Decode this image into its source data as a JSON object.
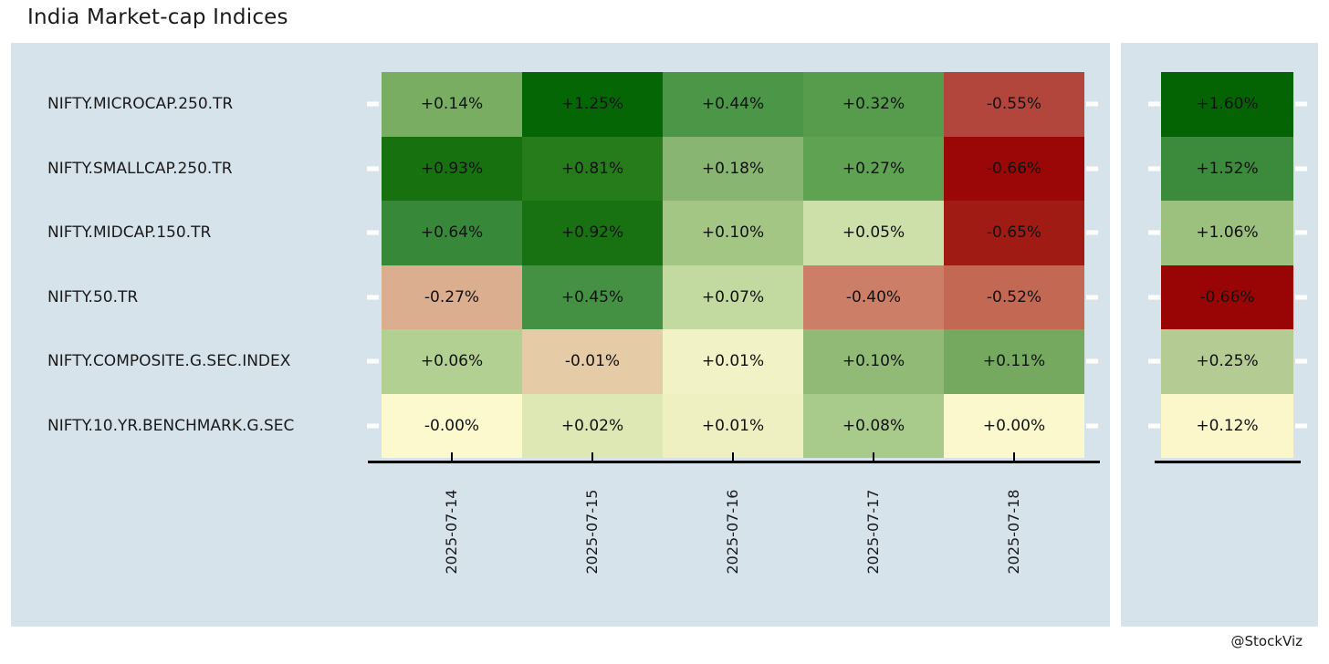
{
  "title": "India Market-cap Indices",
  "credit": "@StockViz",
  "chart_data": {
    "type": "heatmap",
    "title": "India Market-cap Indices",
    "unit": "percent daily return",
    "panel_bg": "#d7e3eb",
    "tick_color": "#ffffff",
    "axis_color": "#000000",
    "columns": [
      "2025-07-14",
      "2025-07-15",
      "2025-07-16",
      "2025-07-17",
      "2025-07-18"
    ],
    "summary_note": "right-hand column is the week total",
    "rows": [
      {
        "label": "NIFTY.MICROCAP.250.TR",
        "values": [
          0.14,
          1.25,
          0.44,
          0.32,
          -0.55
        ],
        "display": [
          "+0.14%",
          "+1.25%",
          "+0.44%",
          "+0.32%",
          "-0.55%"
        ],
        "colors": [
          "#79ae62",
          "#056605",
          "#4b9647",
          "#569c4c",
          "#b3463c"
        ],
        "summary_value": 1.6,
        "summary_display": "+1.60%",
        "summary_color": "#046404"
      },
      {
        "label": "NIFTY.SMALLCAP.250.TR",
        "values": [
          0.93,
          0.81,
          0.18,
          0.27,
          -0.66
        ],
        "display": [
          "+0.93%",
          "+0.81%",
          "+0.18%",
          "+0.27%",
          "-0.66%"
        ],
        "colors": [
          "#17710f",
          "#267b1b",
          "#89b572",
          "#5fa252",
          "#9b0707"
        ],
        "summary_value": 1.52,
        "summary_display": "+1.52%",
        "summary_color": "#3c8a3c"
      },
      {
        "label": "NIFTY.MIDCAP.150.TR",
        "values": [
          0.64,
          0.92,
          0.1,
          0.05,
          -0.65
        ],
        "display": [
          "+0.64%",
          "+0.92%",
          "+0.10%",
          "+0.05%",
          "-0.65%"
        ],
        "colors": [
          "#388839",
          "#187211",
          "#a3c685",
          "#cde0a9",
          "#a01b14"
        ],
        "summary_value": 1.06,
        "summary_display": "+1.06%",
        "summary_color": "#9cc17f"
      },
      {
        "label": "NIFTY.50.TR",
        "values": [
          -0.27,
          0.45,
          0.07,
          -0.4,
          -0.52
        ],
        "display": [
          "-0.27%",
          "+0.45%",
          "+0.07%",
          "-0.40%",
          "-0.52%"
        ],
        "colors": [
          "#dcae90",
          "#459144",
          "#c2d9a0",
          "#cd7e67",
          "#c26853"
        ],
        "summary_value": -0.66,
        "summary_display": "-0.66%",
        "summary_color": "#990404"
      },
      {
        "label": "NIFTY.COMPOSITE.G.SEC.INDEX",
        "values": [
          0.06,
          -0.01,
          0.01,
          0.1,
          0.11
        ],
        "display": [
          "+0.06%",
          "-0.01%",
          "+0.01%",
          "+0.10%",
          "+0.11%"
        ],
        "colors": [
          "#b3d093",
          "#e5cba6",
          "#f1f2c5",
          "#90ba75",
          "#75a95f"
        ],
        "summary_value": 0.25,
        "summary_display": "+0.25%",
        "summary_color": "#b4cb93"
      },
      {
        "label": "NIFTY.10.YR.BENCHMARK.G.SEC",
        "values": [
          -0.0,
          0.02,
          0.01,
          0.08,
          0.0
        ],
        "display": [
          "-0.00%",
          "+0.02%",
          "+0.01%",
          "+0.08%",
          "+0.00%"
        ],
        "colors": [
          "#fcf9ce",
          "#dde8b4",
          "#eff0c2",
          "#a8ca8b",
          "#fbf8cd"
        ],
        "summary_value": 0.12,
        "summary_display": "+0.12%",
        "summary_color": "#fbf7cb"
      }
    ]
  }
}
